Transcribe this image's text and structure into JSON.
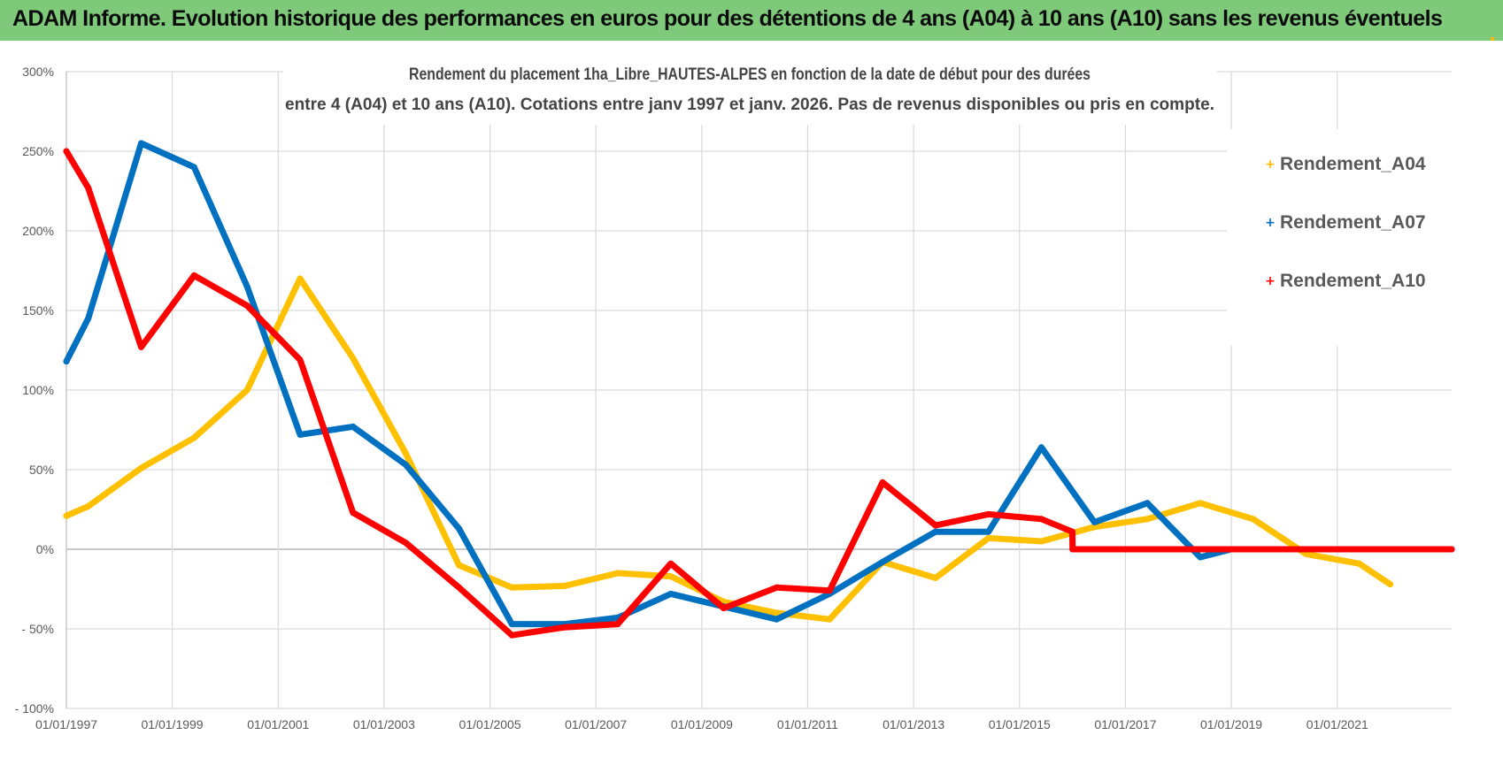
{
  "header": {
    "title": "ADAM Informe. Evolution historique des performances en euros pour des détentions de 4 ans (A04) à 10 ans (A10) sans les revenus éventuels"
  },
  "colors": {
    "header_bg": "#7ec97a",
    "a04": "#ffc000",
    "a07": "#0070c0",
    "a10": "#ff0000",
    "corner": "#f2b716"
  },
  "chart_data": {
    "type": "line",
    "title_lines": [
      "Rendement du placement 1ha_Libre_HAUTES-ALPES en fonction de la date de début pour des durées",
      "entre 4 (A04) et 10 ans (A10).  Cotations entre janv 1997 et janv. 2026. Pas de revenus disponibles ou pris en compte."
    ],
    "x_type": "date",
    "xlim": [
      "1997-01-01",
      "2023-03-01"
    ],
    "x_ticks": [
      "1997-01-01",
      "1999-01-01",
      "2001-01-01",
      "2003-01-01",
      "2005-01-01",
      "2007-01-01",
      "2009-01-01",
      "2011-01-01",
      "2013-01-01",
      "2015-01-01",
      "2017-01-01",
      "2019-01-01",
      "2021-01-01"
    ],
    "x_tick_labels": [
      "01/01/1997",
      "01/01/1999",
      "01/01/2001",
      "01/01/2003",
      "01/01/2005",
      "01/01/2007",
      "01/01/2009",
      "01/01/2011",
      "01/01/2013",
      "01/01/2015",
      "01/01/2017",
      "01/01/2019",
      "01/01/2021"
    ],
    "ylim": [
      -100,
      300
    ],
    "y_ticks": [
      -100,
      -50,
      0,
      50,
      100,
      150,
      200,
      250,
      300
    ],
    "y_tick_labels": [
      "- 100%",
      "- 50%",
      "0%",
      "50%",
      "100%",
      "150%",
      "200%",
      "250%",
      "300%"
    ],
    "grid": true,
    "legend_position": "top-right",
    "series": [
      {
        "name": "Rendement_A04",
        "color": "#ffc000",
        "points": [
          [
            "1997-01-01",
            21
          ],
          [
            "1997-06-01",
            27
          ],
          [
            "1998-06-01",
            51
          ],
          [
            "1999-06-01",
            70
          ],
          [
            "2000-06-01",
            100
          ],
          [
            "2001-06-01",
            170
          ],
          [
            "2002-06-01",
            120
          ],
          [
            "2003-06-01",
            60
          ],
          [
            "2004-06-01",
            -10
          ],
          [
            "2005-06-01",
            -24
          ],
          [
            "2006-06-01",
            -23
          ],
          [
            "2007-06-01",
            -15
          ],
          [
            "2008-06-01",
            -17
          ],
          [
            "2009-06-01",
            -33
          ],
          [
            "2010-06-01",
            -40
          ],
          [
            "2011-06-01",
            -44
          ],
          [
            "2012-06-01",
            -8
          ],
          [
            "2013-06-01",
            -18
          ],
          [
            "2014-06-01",
            7
          ],
          [
            "2015-06-01",
            5
          ],
          [
            "2016-06-01",
            14
          ],
          [
            "2017-06-01",
            19
          ],
          [
            "2018-06-01",
            29
          ],
          [
            "2019-06-01",
            19
          ],
          [
            "2020-06-01",
            -3
          ],
          [
            "2021-06-01",
            -9
          ],
          [
            "2022-01-01",
            -22
          ]
        ]
      },
      {
        "name": "Rendement_A07",
        "color": "#0070c0",
        "points": [
          [
            "1997-01-01",
            118
          ],
          [
            "1997-06-01",
            145
          ],
          [
            "1998-06-01",
            255
          ],
          [
            "1999-06-01",
            240
          ],
          [
            "2000-06-01",
            165
          ],
          [
            "2001-06-01",
            72
          ],
          [
            "2002-06-01",
            77
          ],
          [
            "2003-06-01",
            53
          ],
          [
            "2004-06-01",
            13
          ],
          [
            "2005-06-01",
            -47
          ],
          [
            "2006-06-01",
            -47
          ],
          [
            "2007-06-01",
            -43
          ],
          [
            "2008-06-01",
            -28
          ],
          [
            "2009-06-01",
            -36
          ],
          [
            "2010-06-01",
            -44
          ],
          [
            "2011-06-01",
            -28
          ],
          [
            "2012-06-01",
            -8
          ],
          [
            "2013-06-01",
            11
          ],
          [
            "2014-06-01",
            11
          ],
          [
            "2015-06-01",
            64
          ],
          [
            "2016-06-01",
            17
          ],
          [
            "2017-06-01",
            29
          ],
          [
            "2018-06-01",
            -5
          ],
          [
            "2019-01-01",
            0
          ],
          [
            "2023-03-01",
            0
          ]
        ]
      },
      {
        "name": "Rendement_A10",
        "color": "#ff0000",
        "points": [
          [
            "1997-01-01",
            250
          ],
          [
            "1997-06-01",
            227
          ],
          [
            "1998-06-01",
            127
          ],
          [
            "1999-06-01",
            172
          ],
          [
            "2000-06-01",
            153
          ],
          [
            "2001-06-01",
            119
          ],
          [
            "2002-06-01",
            23
          ],
          [
            "2003-06-01",
            4
          ],
          [
            "2004-06-01",
            -24
          ],
          [
            "2005-06-01",
            -54
          ],
          [
            "2006-06-01",
            -49
          ],
          [
            "2007-06-01",
            -47
          ],
          [
            "2008-06-01",
            -9
          ],
          [
            "2009-06-01",
            -37
          ],
          [
            "2010-06-01",
            -24
          ],
          [
            "2011-06-01",
            -26
          ],
          [
            "2012-06-01",
            42
          ],
          [
            "2013-06-01",
            15
          ],
          [
            "2014-06-01",
            22
          ],
          [
            "2015-06-01",
            19
          ],
          [
            "2016-01-01",
            11
          ],
          [
            "2016-01-02",
            0
          ],
          [
            "2023-03-01",
            0
          ]
        ]
      }
    ]
  }
}
